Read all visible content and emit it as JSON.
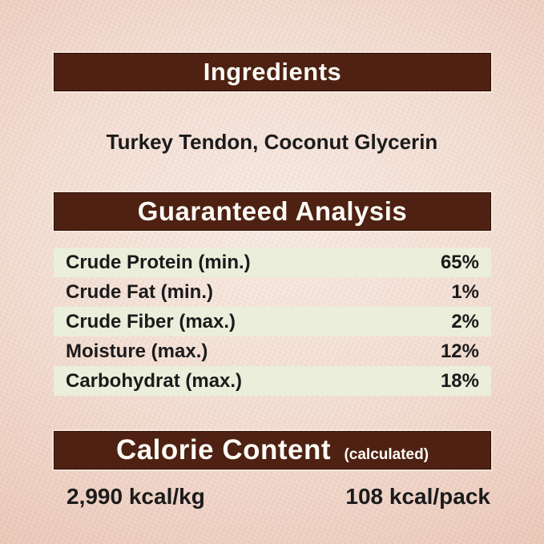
{
  "colors": {
    "accent_brown": "#4e2112",
    "row_green": "#eaeedb",
    "background_pink": "#f0d4c7",
    "header_text": "#fdfbf5",
    "body_text": "#1b1b1b"
  },
  "ingredients": {
    "header": "Ingredients",
    "value": "Turkey Tendon, Coconut Glycerin"
  },
  "guaranteed_analysis": {
    "header": "Guaranteed Analysis",
    "rows": [
      {
        "label": "Crude Protein (min.)",
        "value": "65%"
      },
      {
        "label": "Crude Fat (min.)",
        "value": "1%"
      },
      {
        "label": "Crude Fiber (max.)",
        "value": "2%"
      },
      {
        "label": "Moisture (max.)",
        "value": "12%"
      },
      {
        "label": "Carbohydrat (max.)",
        "value": "18%"
      }
    ]
  },
  "calorie_content": {
    "header": "Calorie Content",
    "qualifier": "(calculated)",
    "per_kg": "2,990 kcal/kg",
    "per_pack": "108 kcal/pack"
  }
}
